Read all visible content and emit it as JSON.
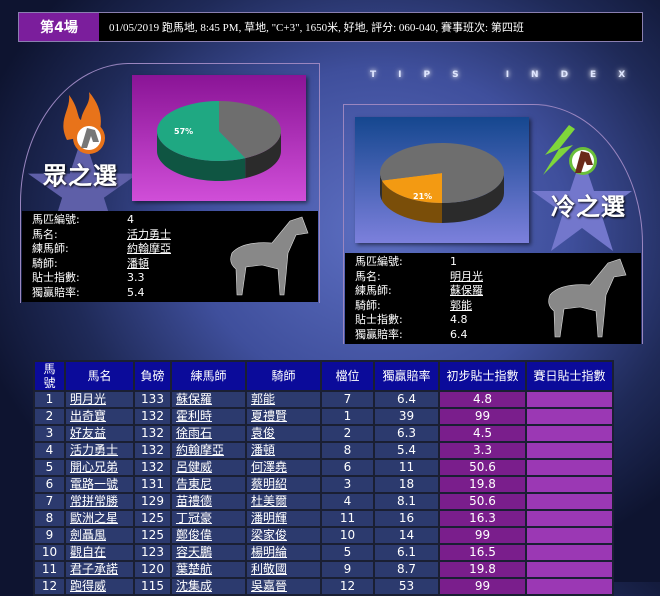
{
  "header": {
    "race": "第4場",
    "info": "01/05/2019 跑馬地, 8:45 PM, 草地, \"C+3\", 1650米, 好地, 評分: 060-040, 賽事班次: 第四班"
  },
  "tips_index": "TIPS INDEX",
  "labels": {
    "no": "馬匹編號:",
    "name": "馬名:",
    "trainer": "練馬師:",
    "jockey": "騎師:",
    "tips": "貼士指數:",
    "odds": "獨贏賠率:"
  },
  "popular": {
    "title": "眾之選",
    "icon": "flame-horse-icon",
    "pie_percent": 57,
    "pie_label": "57%",
    "slice_color": "#1fa882",
    "no": "4",
    "name": "活力勇士",
    "trainer": "約翰摩亞",
    "jockey": "潘頓",
    "tips": "3.3",
    "odds": "5.4"
  },
  "cold": {
    "title": "冷之選",
    "icon": "lightning-horse-icon",
    "pie_percent": 21,
    "pie_label": "21%",
    "slice_color": "#f39a12",
    "no": "1",
    "name": "明月光",
    "trainer": "蘇保羅",
    "jockey": "郭能",
    "tips": "4.8",
    "odds": "6.4"
  },
  "table": {
    "headers": [
      "馬號",
      "馬名",
      "負磅",
      "練馬師",
      "騎師",
      "檔位",
      "獨贏賠率",
      "初步貼士指數",
      "賽日貼士指數"
    ],
    "rows": [
      [
        "1",
        "明月光",
        "133",
        "蘇保羅",
        "郭能",
        "7",
        "6.4",
        "4.8",
        ""
      ],
      [
        "2",
        "出奇寶",
        "132",
        "霍利時",
        "夏禮賢",
        "1",
        "39",
        "99",
        ""
      ],
      [
        "3",
        "好友益",
        "132",
        "徐雨石",
        "袁俊",
        "2",
        "6.3",
        "4.5",
        ""
      ],
      [
        "4",
        "活力勇士",
        "132",
        "約翰摩亞",
        "潘頓",
        "8",
        "5.4",
        "3.3",
        ""
      ],
      [
        "5",
        "開心兄弟",
        "132",
        "呂健威",
        "何澤堯",
        "6",
        "11",
        "50.6",
        ""
      ],
      [
        "6",
        "電路一號",
        "131",
        "告東尼",
        "蔡明紹",
        "3",
        "18",
        "19.8",
        ""
      ],
      [
        "7",
        "常拼常勝",
        "129",
        "苗禮德",
        "杜美爾",
        "4",
        "8.1",
        "50.6",
        ""
      ],
      [
        "8",
        "歐洲之星",
        "125",
        "丁冠豪",
        "潘明輝",
        "11",
        "16",
        "16.3",
        ""
      ],
      [
        "9",
        "劍聶風",
        "125",
        "鄭俊偉",
        "梁家俊",
        "10",
        "14",
        "99",
        ""
      ],
      [
        "10",
        "觀自在",
        "123",
        "容天鵬",
        "楊明綸",
        "5",
        "6.1",
        "16.5",
        ""
      ],
      [
        "11",
        "君子承諾",
        "120",
        "葉楚航",
        "利敬國",
        "9",
        "8.7",
        "19.8",
        ""
      ],
      [
        "12",
        "跑得威",
        "115",
        "沈集成",
        "吳嘉晉",
        "12",
        "53",
        "99",
        ""
      ]
    ]
  }
}
